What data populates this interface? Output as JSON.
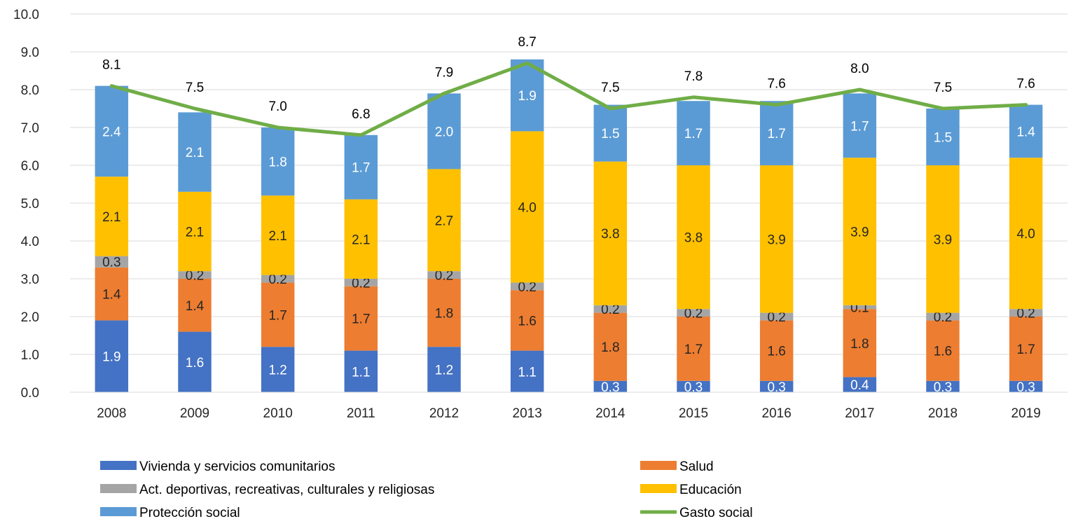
{
  "chart_data": {
    "type": "bar",
    "stacked": true,
    "categories": [
      "2008",
      "2009",
      "2010",
      "2011",
      "2012",
      "2013",
      "2014",
      "2015",
      "2016",
      "2017",
      "2018",
      "2019"
    ],
    "ylim": [
      0,
      10
    ],
    "yticks": [
      "0.0",
      "1.0",
      "2.0",
      "3.0",
      "4.0",
      "5.0",
      "6.0",
      "7.0",
      "8.0",
      "9.0",
      "10.0"
    ],
    "grid": true,
    "legend_position": "bottom",
    "series": [
      {
        "name": "Vivienda y servicios comunitarios",
        "color": "#4472C4",
        "label_color": "#ffffff",
        "values": [
          1.9,
          1.6,
          1.2,
          1.1,
          1.2,
          1.1,
          0.3,
          0.3,
          0.3,
          0.4,
          0.3,
          0.3
        ]
      },
      {
        "name": "Salud",
        "color": "#ED7D31",
        "label_color": "#262626",
        "values": [
          1.4,
          1.4,
          1.7,
          1.7,
          1.8,
          1.6,
          1.8,
          1.7,
          1.6,
          1.8,
          1.6,
          1.7
        ]
      },
      {
        "name": "Act. deportivas, recreativas, culturales y religiosas",
        "color": "#A5A5A5",
        "label_color": "#262626",
        "values": [
          0.3,
          0.2,
          0.2,
          0.2,
          0.2,
          0.2,
          0.2,
          0.2,
          0.2,
          0.1,
          0.2,
          0.2
        ]
      },
      {
        "name": "Educación",
        "color": "#FFC000",
        "label_color": "#262626",
        "values": [
          2.1,
          2.1,
          2.1,
          2.1,
          2.7,
          4.0,
          3.8,
          3.8,
          3.9,
          3.9,
          3.9,
          4.0
        ]
      },
      {
        "name": "Protección social",
        "color": "#5B9BD5",
        "label_color": "#ffffff",
        "values": [
          2.4,
          2.1,
          1.8,
          1.7,
          2.0,
          1.9,
          1.5,
          1.7,
          1.7,
          1.7,
          1.5,
          1.4
        ]
      }
    ],
    "line": {
      "name": "Gasto  social",
      "color": "#70AD47",
      "values": [
        8.1,
        7.5,
        7.0,
        6.8,
        7.9,
        8.7,
        7.5,
        7.8,
        7.6,
        8.0,
        7.5,
        7.6
      ]
    },
    "legend_order": [
      "Vivienda y servicios comunitarios",
      "Salud",
      "Act. deportivas, recreativas, culturales y religiosas",
      "Educación",
      "Protección social",
      "Gasto  social"
    ]
  }
}
